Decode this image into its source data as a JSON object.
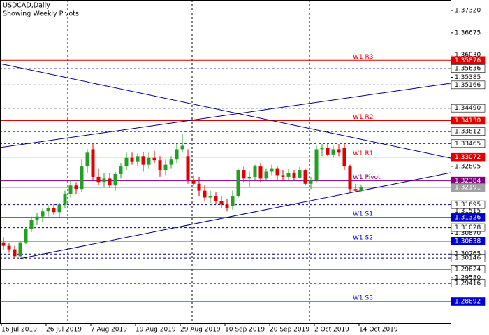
{
  "chart_data": {
    "type": "candlestick",
    "title": "USDCAD,Daily",
    "subtitle": "Showing Weekly Pivots.",
    "categories": [
      "16 Jul 2019",
      null,
      null,
      null,
      null,
      null,
      null,
      null,
      "26 Jul 2019",
      null,
      null,
      null,
      null,
      null,
      null,
      null,
      "7 Aug 2019",
      null,
      null,
      null,
      null,
      null,
      null,
      null,
      "19 Aug 2019",
      null,
      null,
      null,
      null,
      null,
      null,
      null,
      "29 Aug 2019",
      null,
      null,
      null,
      null,
      null,
      null,
      null,
      "10 Sep 2019",
      null,
      null,
      null,
      null,
      null,
      null,
      null,
      "20 Sep 2019",
      null,
      null,
      null,
      null,
      null,
      null,
      null,
      "2 Oct 2019",
      null,
      null,
      null,
      null,
      null,
      null,
      null,
      "14 Oct 2019"
    ],
    "open": [
      1.306,
      1.305,
      1.304,
      1.302,
      1.306,
      1.31,
      1.3125,
      1.3135,
      1.315,
      1.316,
      1.3148,
      1.317,
      1.32,
      1.3225,
      1.3215,
      1.328,
      1.333,
      1.325,
      1.3235,
      1.3245,
      1.3225,
      1.3258,
      1.328,
      1.3305,
      1.3295,
      1.331,
      1.3285,
      1.3305,
      1.3298,
      1.327,
      1.3285,
      1.33,
      1.333,
      1.331,
      1.324,
      1.323,
      1.321,
      1.319,
      1.3195,
      1.318,
      1.317,
      1.3165,
      1.3195,
      1.327,
      1.3245,
      1.325,
      1.328,
      1.3245,
      1.3265,
      1.3275,
      1.3255,
      1.325,
      1.3262,
      1.3248,
      1.327,
      1.323,
      1.324,
      1.333,
      1.3335,
      1.3315,
      1.333,
      1.3335,
      1.328,
      1.3215,
      1.321
    ],
    "high": [
      1.3075,
      1.3058,
      1.305,
      1.3065,
      1.3105,
      1.3135,
      1.3145,
      1.316,
      1.3168,
      1.317,
      1.3175,
      1.321,
      1.324,
      1.3235,
      1.33,
      1.333,
      1.3345,
      1.3275,
      1.326,
      1.3262,
      1.3265,
      1.329,
      1.332,
      1.332,
      1.3318,
      1.3322,
      1.332,
      1.3325,
      1.331,
      1.33,
      1.331,
      1.3345,
      1.3375,
      1.333,
      1.3255,
      1.325,
      1.3225,
      1.321,
      1.3205,
      1.3195,
      1.3185,
      1.321,
      1.3275,
      1.328,
      1.3265,
      1.3285,
      1.329,
      1.3275,
      1.3285,
      1.3282,
      1.327,
      1.3272,
      1.327,
      1.3278,
      1.3275,
      1.325,
      1.334,
      1.3345,
      1.3345,
      1.334,
      1.3345,
      1.3345,
      1.3285,
      1.323,
      1.3228
    ],
    "low": [
      1.304,
      1.303,
      1.3015,
      1.3015,
      1.3055,
      1.309,
      1.311,
      1.312,
      1.3135,
      1.314,
      1.313,
      1.316,
      1.319,
      1.32,
      1.3205,
      1.326,
      1.324,
      1.3225,
      1.322,
      1.3218,
      1.321,
      1.3245,
      1.327,
      1.3285,
      1.328,
      1.3265,
      1.3275,
      1.329,
      1.325,
      1.3255,
      1.3275,
      1.329,
      1.332,
      1.323,
      1.3225,
      1.3195,
      1.318,
      1.3175,
      1.317,
      1.316,
      1.315,
      1.3155,
      1.319,
      1.3235,
      1.322,
      1.324,
      1.3235,
      1.324,
      1.3255,
      1.324,
      1.3238,
      1.324,
      1.324,
      1.3245,
      1.3225,
      1.3215,
      1.3235,
      1.331,
      1.331,
      1.3305,
      1.331,
      1.327,
      1.3205,
      1.3205,
      1.3205
    ],
    "close": [
      1.305,
      1.304,
      1.302,
      1.306,
      1.31,
      1.3125,
      1.3135,
      1.315,
      1.316,
      1.3148,
      1.317,
      1.32,
      1.3225,
      1.3215,
      1.328,
      1.332,
      1.325,
      1.3235,
      1.3245,
      1.3225,
      1.3258,
      1.328,
      1.3305,
      1.3295,
      1.331,
      1.3285,
      1.3305,
      1.3298,
      1.327,
      1.3285,
      1.33,
      1.333,
      1.334,
      1.324,
      1.323,
      1.321,
      1.319,
      1.3195,
      1.318,
      1.317,
      1.316,
      1.3195,
      1.327,
      1.3245,
      1.325,
      1.328,
      1.3245,
      1.3265,
      1.3275,
      1.3255,
      1.325,
      1.3262,
      1.3248,
      1.327,
      1.323,
      1.324,
      1.333,
      1.3335,
      1.3315,
      1.333,
      1.332,
      1.328,
      1.3215,
      1.321,
      1.3219
    ],
    "up_color": "#22a022",
    "down_color": "#e00000",
    "ylim": [
      1.28264,
      1.37624
    ],
    "yticks": [
      {
        "value": 1.3732,
        "label": "1.37320"
      },
      1.36675,
      {
        "value": 1.3603,
        "label": "1.36030"
      },
      1.35385,
      1.32805,
      1.31515,
      {
        "value": 1.3087,
        "label": "1.30870"
      },
      {
        "value": 1.2958,
        "label": "1.29580"
      }
    ],
    "levels": [
      {
        "value": 1.35876,
        "label": "1.35876",
        "name": "W1 R3",
        "color": "#e00000",
        "style": "solid",
        "box_color": "#e00000"
      },
      {
        "value": 1.35636,
        "label": "1.35636",
        "color": "#000080",
        "style": "dashed"
      },
      {
        "value": 1.35166,
        "label": "1.35166",
        "color": "#000080",
        "style": "dashed"
      },
      {
        "value": 1.3449,
        "label": "1.34490",
        "color": "#000080",
        "style": "dashed"
      },
      {
        "value": 1.3413,
        "label": "1.34130",
        "name": "W1 R2",
        "color": "#e00000",
        "style": "solid",
        "box_color": "#e00000"
      },
      {
        "value": 1.33812,
        "label": "1.33812",
        "color": "#000080",
        "style": "dashed"
      },
      {
        "value": 1.33465,
        "label": "1.33465",
        "color": "#000080",
        "style": "dashed"
      },
      {
        "value": 1.33072,
        "label": "1.33072",
        "name": "W1 R1",
        "color": "#e00000",
        "style": "solid",
        "box_color": "#e00000"
      },
      {
        "value": 1.32384,
        "label": "1.32384",
        "name": "W1 Pivot",
        "color": "#800080",
        "style": "solid",
        "box_color": "#800080"
      },
      {
        "value": 1.32191,
        "label": "1.32191",
        "color": "#a0a0a0",
        "style": "solid",
        "box_color": "#a0a0a0"
      },
      {
        "value": 1.31695,
        "label": "1.31695",
        "color": "#000080",
        "style": "dashed"
      },
      {
        "value": 1.31326,
        "label": "1.31326",
        "name": "W1 S1",
        "color": "#0000cd",
        "style": "solid",
        "box_color": "#0000cd"
      },
      {
        "value": 1.31028,
        "label": "1.31028",
        "color": "#000080",
        "style": "dashed"
      },
      {
        "value": 1.30638,
        "label": "1.30638",
        "name": "W1 S2",
        "color": "#0000cd",
        "style": "solid",
        "box_color": "#0000cd"
      },
      {
        "value": 1.30265,
        "label": "1.30265",
        "color": "#000080",
        "style": "dashed"
      },
      {
        "value": 1.30146,
        "label": "1.30146",
        "color": "#000080",
        "style": "dashed"
      },
      {
        "value": 1.29824,
        "label": "1.29824",
        "color": "#000080",
        "style": "solid"
      },
      {
        "value": 1.29416,
        "label": "1.29416",
        "color": "#000080",
        "style": "dashed"
      },
      {
        "value": 1.28892,
        "label": "1.28892",
        "name": "W1 S3",
        "color": "#0000cd",
        "style": "solid",
        "box_color": "#0000cd"
      }
    ]
  }
}
